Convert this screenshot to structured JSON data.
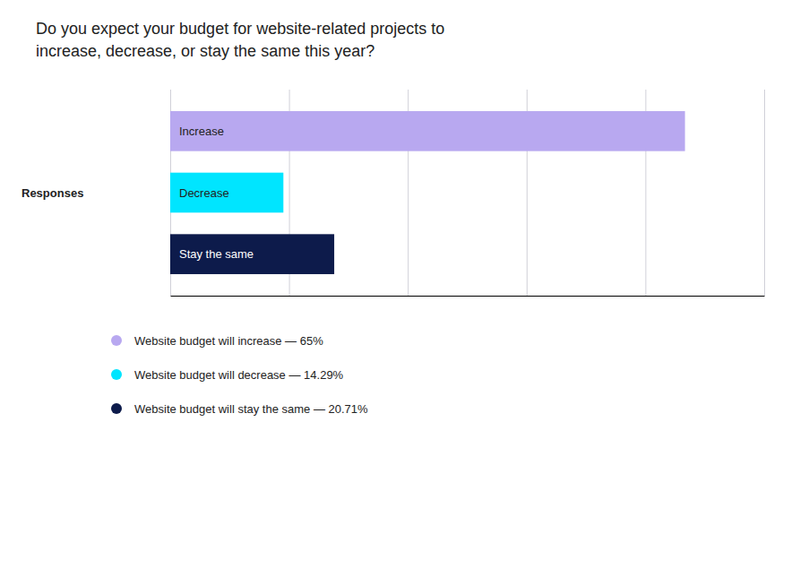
{
  "chart_data": {
    "type": "bar",
    "orientation": "horizontal",
    "title": "Do you expect your budget for website-related projects to\nincrease, decrease, or stay the same this year?",
    "ylabel": "Responses",
    "categories": [
      "Increase",
      "Decrease",
      "Stay the same"
    ],
    "values": [
      65.0,
      14.29,
      20.71
    ],
    "colors": [
      "#b8a8f0",
      "#00e5ff",
      "#0d1b4b"
    ],
    "xlim": [
      0,
      75
    ],
    "xticks": [
      0,
      15,
      30,
      45,
      60,
      75
    ],
    "grid": true,
    "tick_labels": false,
    "annotations": [
      "Website budget will increase — 65%",
      "Website budget will decrease — 14.29%",
      "Website budget will stay the same — 20.71%"
    ]
  }
}
